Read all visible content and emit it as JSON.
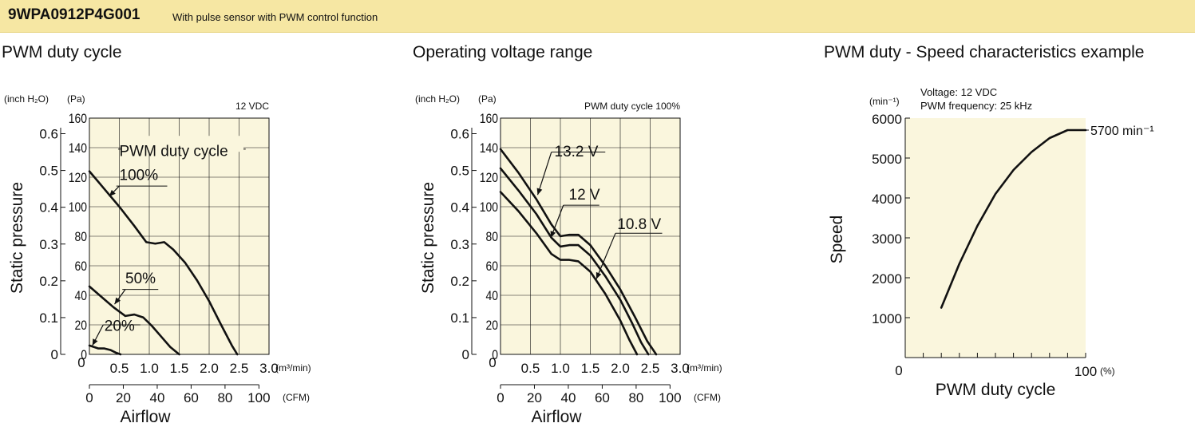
{
  "header": {
    "model": "9WPA0912P4G001",
    "description": "With pulse sensor with PWM control function"
  },
  "chart_data": [
    {
      "type": "line",
      "title": "PWM duty cycle",
      "annotation": "12 VDC",
      "xlabel": "Airflow",
      "ylabel": "Static pressure",
      "x_unit_primary": "(m³/min)",
      "x_unit_secondary": "(CFM)",
      "y_unit_left": "(inch H₂O)",
      "y_unit_right": "(Pa)",
      "legend_label": "PWM duty cycle",
      "xlim": [
        0,
        3.0
      ],
      "ylim": [
        0,
        160
      ],
      "xticks_primary": [
        "0",
        "0.5",
        "1.0",
        "1.5",
        "2.0",
        "2.5",
        "3.0"
      ],
      "xticks_secondary": [
        "0",
        "20",
        "40",
        "60",
        "80",
        "100"
      ],
      "yticks_pa": [
        "0",
        "20",
        "40",
        "60",
        "80",
        "100",
        "120",
        "140",
        "160"
      ],
      "yticks_inch": [
        "0",
        "0.1",
        "0.2",
        "0.3",
        "0.4",
        "0.5",
        "0.6"
      ],
      "series": [
        {
          "name": "100%",
          "x": [
            0,
            0.25,
            0.5,
            0.75,
            0.95,
            1.1,
            1.25,
            1.4,
            1.6,
            1.8,
            2.0,
            2.2,
            2.38,
            2.47
          ],
          "y": [
            124,
            112,
            100,
            87,
            76,
            75,
            76,
            71,
            62,
            50,
            36,
            20,
            6,
            0
          ]
        },
        {
          "name": "50%",
          "x": [
            0,
            0.2,
            0.4,
            0.6,
            0.75,
            0.9,
            1.05,
            1.2,
            1.35,
            1.5
          ],
          "y": [
            46,
            39,
            32,
            26,
            27,
            25,
            19,
            12,
            5,
            0
          ]
        },
        {
          "name": "20%",
          "x": [
            0,
            0.15,
            0.25,
            0.35,
            0.45,
            0.52
          ],
          "y": [
            6,
            4,
            4,
            3,
            1,
            0
          ]
        }
      ]
    },
    {
      "type": "line",
      "title": "Operating voltage range",
      "annotation": "PWM duty cycle 100%",
      "xlabel": "Airflow",
      "ylabel": "Static pressure",
      "x_unit_primary": "(m³/min)",
      "x_unit_secondary": "(CFM)",
      "y_unit_left": "(inch H₂O)",
      "y_unit_right": "(Pa)",
      "xlim": [
        0,
        3.0
      ],
      "ylim": [
        0,
        160
      ],
      "xticks_primary": [
        "0",
        "0.5",
        "1.0",
        "1.5",
        "2.0",
        "2.5",
        "3.0"
      ],
      "xticks_secondary": [
        "0",
        "20",
        "40",
        "60",
        "80",
        "100"
      ],
      "yticks_pa": [
        "0",
        "20",
        "40",
        "60",
        "80",
        "100",
        "120",
        "140",
        "160"
      ],
      "yticks_inch": [
        "0",
        "0.1",
        "0.2",
        "0.3",
        "0.4",
        "0.5",
        "0.6"
      ],
      "series": [
        {
          "name": "13.2 V",
          "x": [
            0,
            0.3,
            0.6,
            0.85,
            1.0,
            1.15,
            1.3,
            1.5,
            1.75,
            2.0,
            2.25,
            2.45,
            2.6
          ],
          "y": [
            139,
            123,
            105,
            88,
            80,
            81,
            81,
            74,
            60,
            44,
            25,
            9,
            0
          ]
        },
        {
          "name": "12 V",
          "x": [
            0,
            0.3,
            0.6,
            0.85,
            1.0,
            1.15,
            1.3,
            1.5,
            1.75,
            2.0,
            2.2,
            2.35,
            2.47
          ],
          "y": [
            126,
            111,
            95,
            79,
            73,
            74,
            74,
            67,
            53,
            37,
            21,
            8,
            0
          ]
        },
        {
          "name": "10.8 V",
          "x": [
            0,
            0.3,
            0.6,
            0.85,
            1.0,
            1.15,
            1.3,
            1.5,
            1.75,
            2.0,
            2.15,
            2.28
          ],
          "y": [
            110,
            97,
            82,
            68,
            64,
            64,
            63,
            56,
            41,
            23,
            10,
            0
          ]
        }
      ]
    },
    {
      "type": "line",
      "title": "PWM duty - Speed characteristics example",
      "annotations": [
        "Voltage: 12 VDC",
        "PWM frequency: 25 kHz"
      ],
      "xlabel": "PWM duty cycle",
      "ylabel": "Speed",
      "x_unit": "(%)",
      "y_unit": "(min⁻¹)",
      "xlim": [
        0,
        100
      ],
      "ylim": [
        0,
        6000
      ],
      "xticks": [
        "0",
        "100"
      ],
      "yticks": [
        "1000",
        "2000",
        "3000",
        "4000",
        "5000",
        "6000"
      ],
      "end_label": "5700 min⁻¹",
      "series": [
        {
          "name": "",
          "x": [
            20,
            30,
            40,
            50,
            60,
            70,
            80,
            90,
            96,
            100
          ],
          "y": [
            1250,
            2350,
            3300,
            4100,
            4700,
            5150,
            5500,
            5700,
            5700,
            5700
          ]
        }
      ]
    }
  ]
}
